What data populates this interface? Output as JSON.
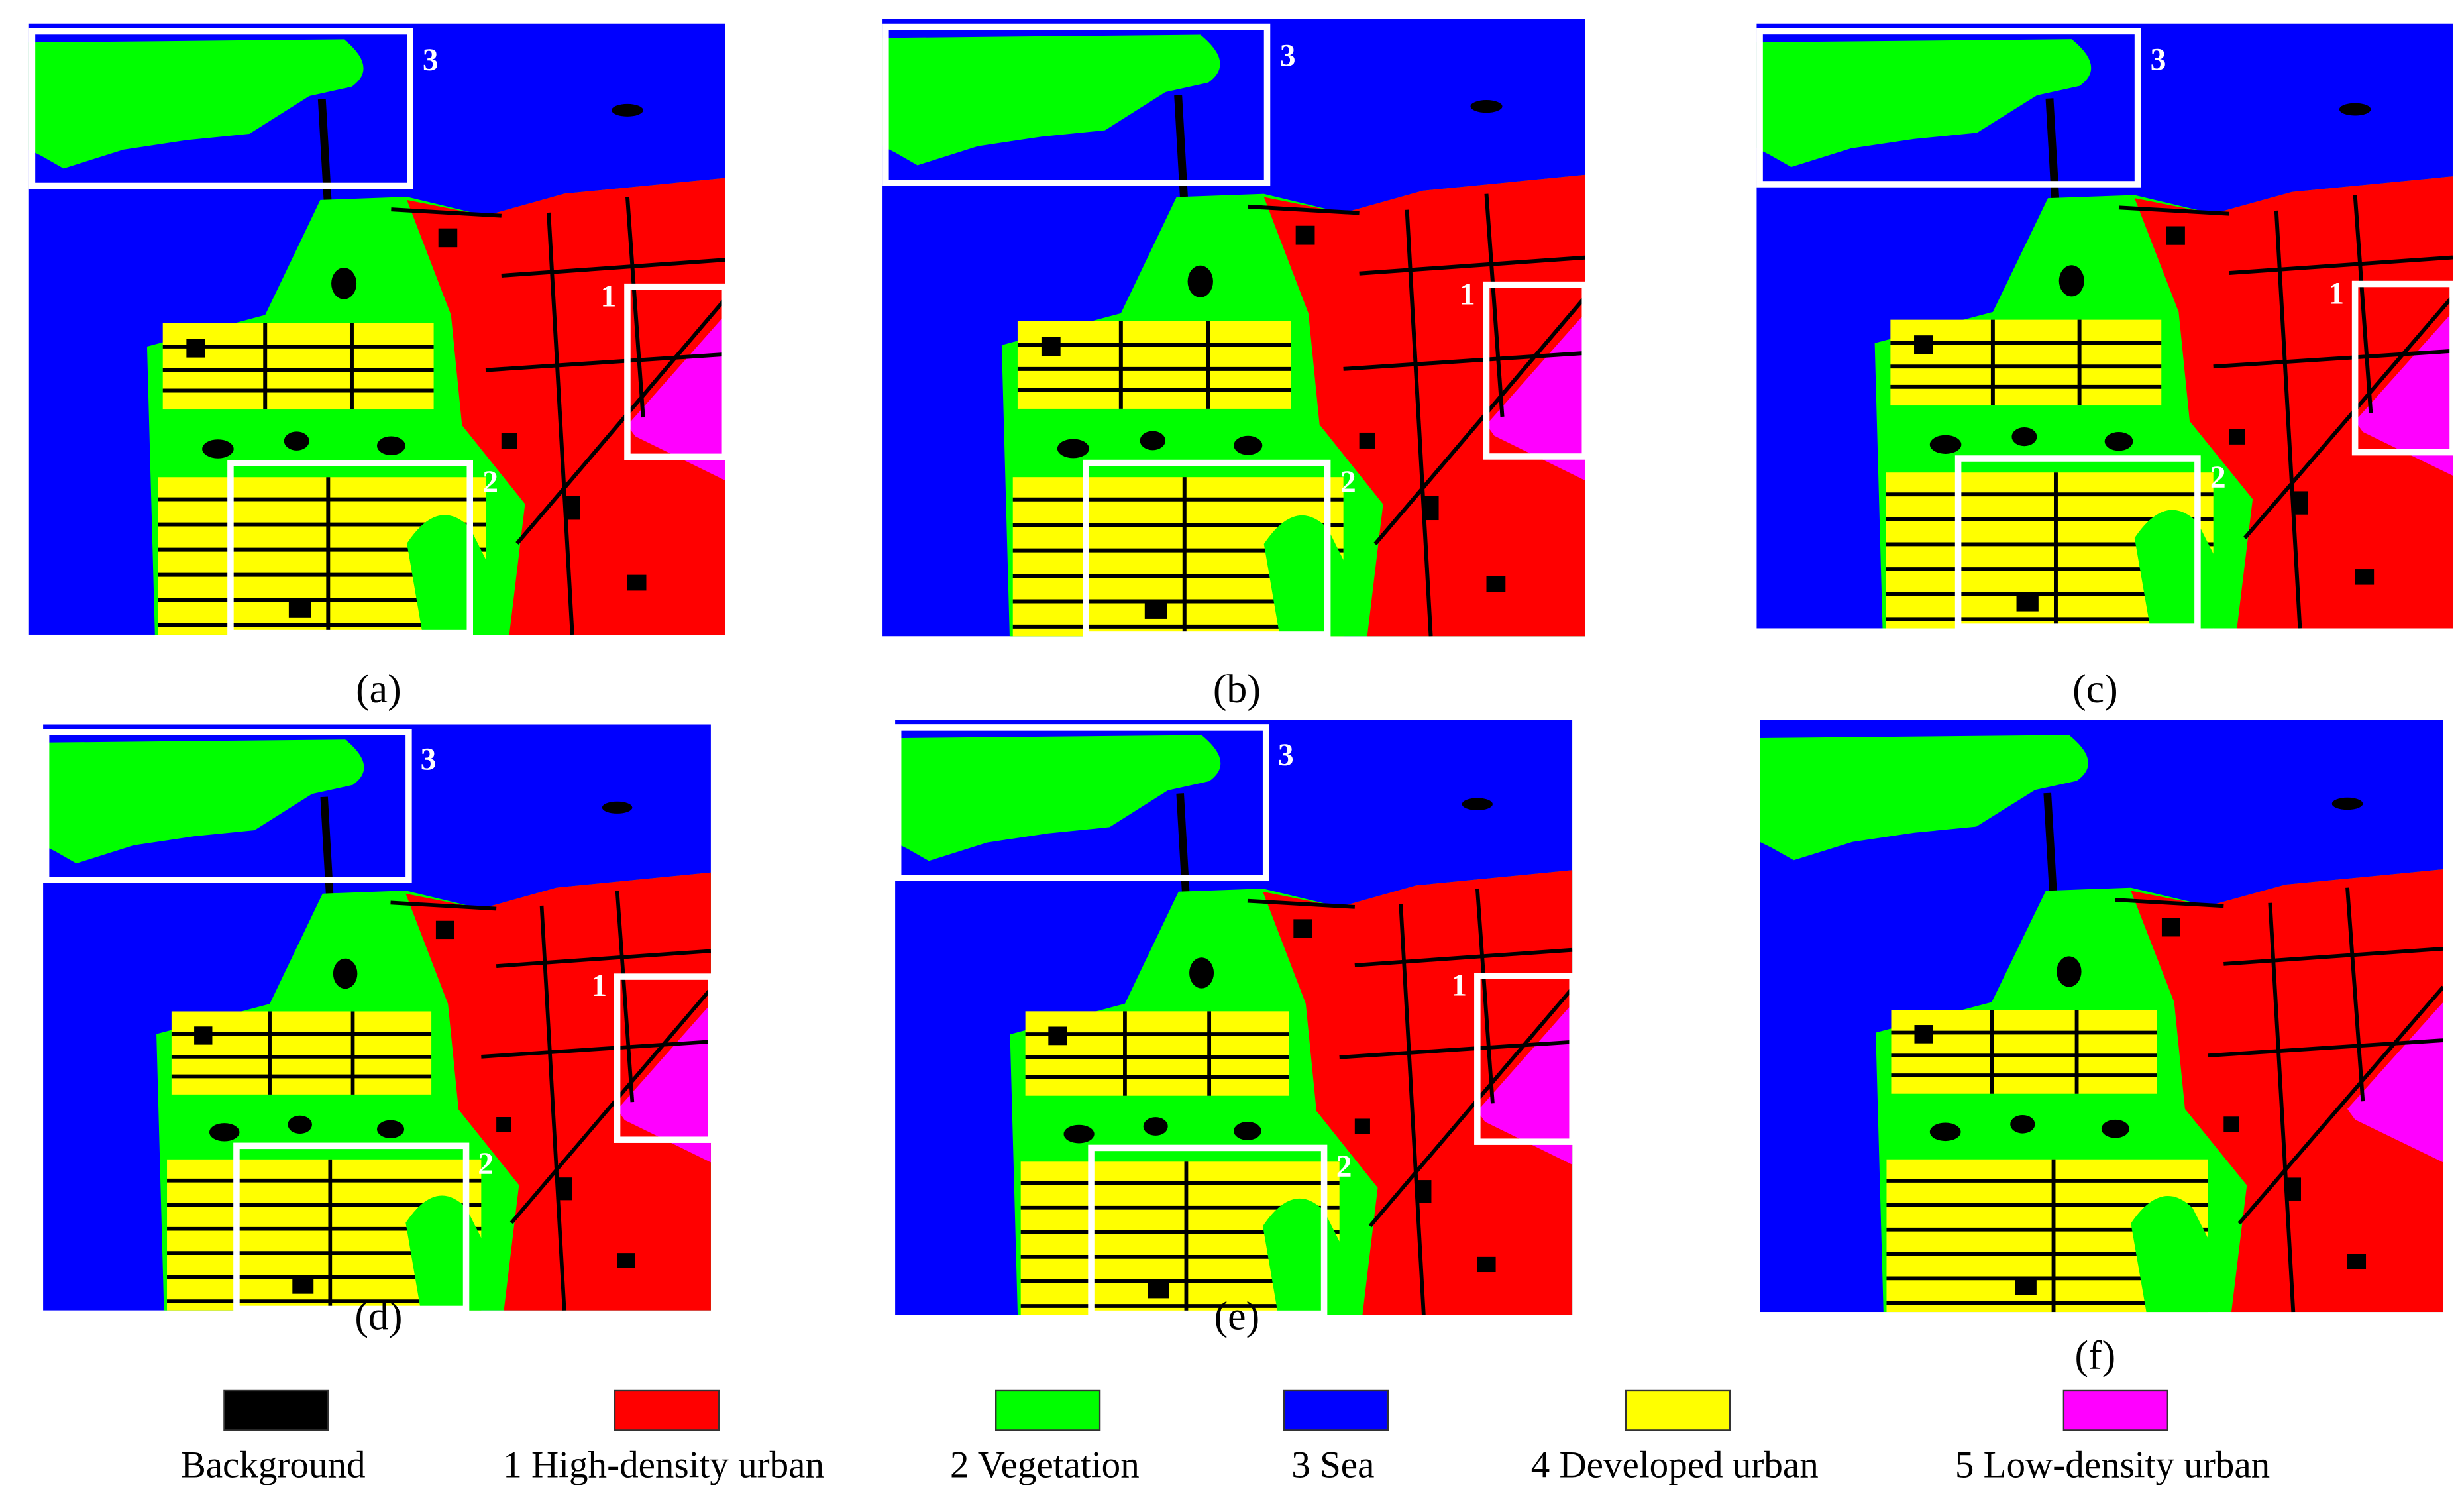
{
  "panels": [
    {
      "label": "(a)",
      "boxes": [
        "3",
        "1",
        "2"
      ]
    },
    {
      "label": "(b)",
      "boxes": [
        "3",
        "1",
        "2"
      ]
    },
    {
      "label": "(c)",
      "boxes": [
        "3",
        "1",
        "2"
      ]
    },
    {
      "label": "(d)",
      "boxes": [
        "3",
        "1",
        "2"
      ]
    },
    {
      "label": "(e)",
      "boxes": [
        "3",
        "1",
        "2"
      ]
    },
    {
      "label": "(f)"
    }
  ],
  "legend": [
    {
      "label": "Background",
      "color": "#000000"
    },
    {
      "label": "1 High-density urban",
      "color": "#ff0000"
    },
    {
      "label": "2 Vegetation",
      "color": "#00ff00"
    },
    {
      "label": "3 Sea",
      "color": "#0000ff"
    },
    {
      "label": "4 Developed urban",
      "color": "#ffff00"
    },
    {
      "label": "5 Low-density urban",
      "color": "#ff00ff"
    }
  ]
}
